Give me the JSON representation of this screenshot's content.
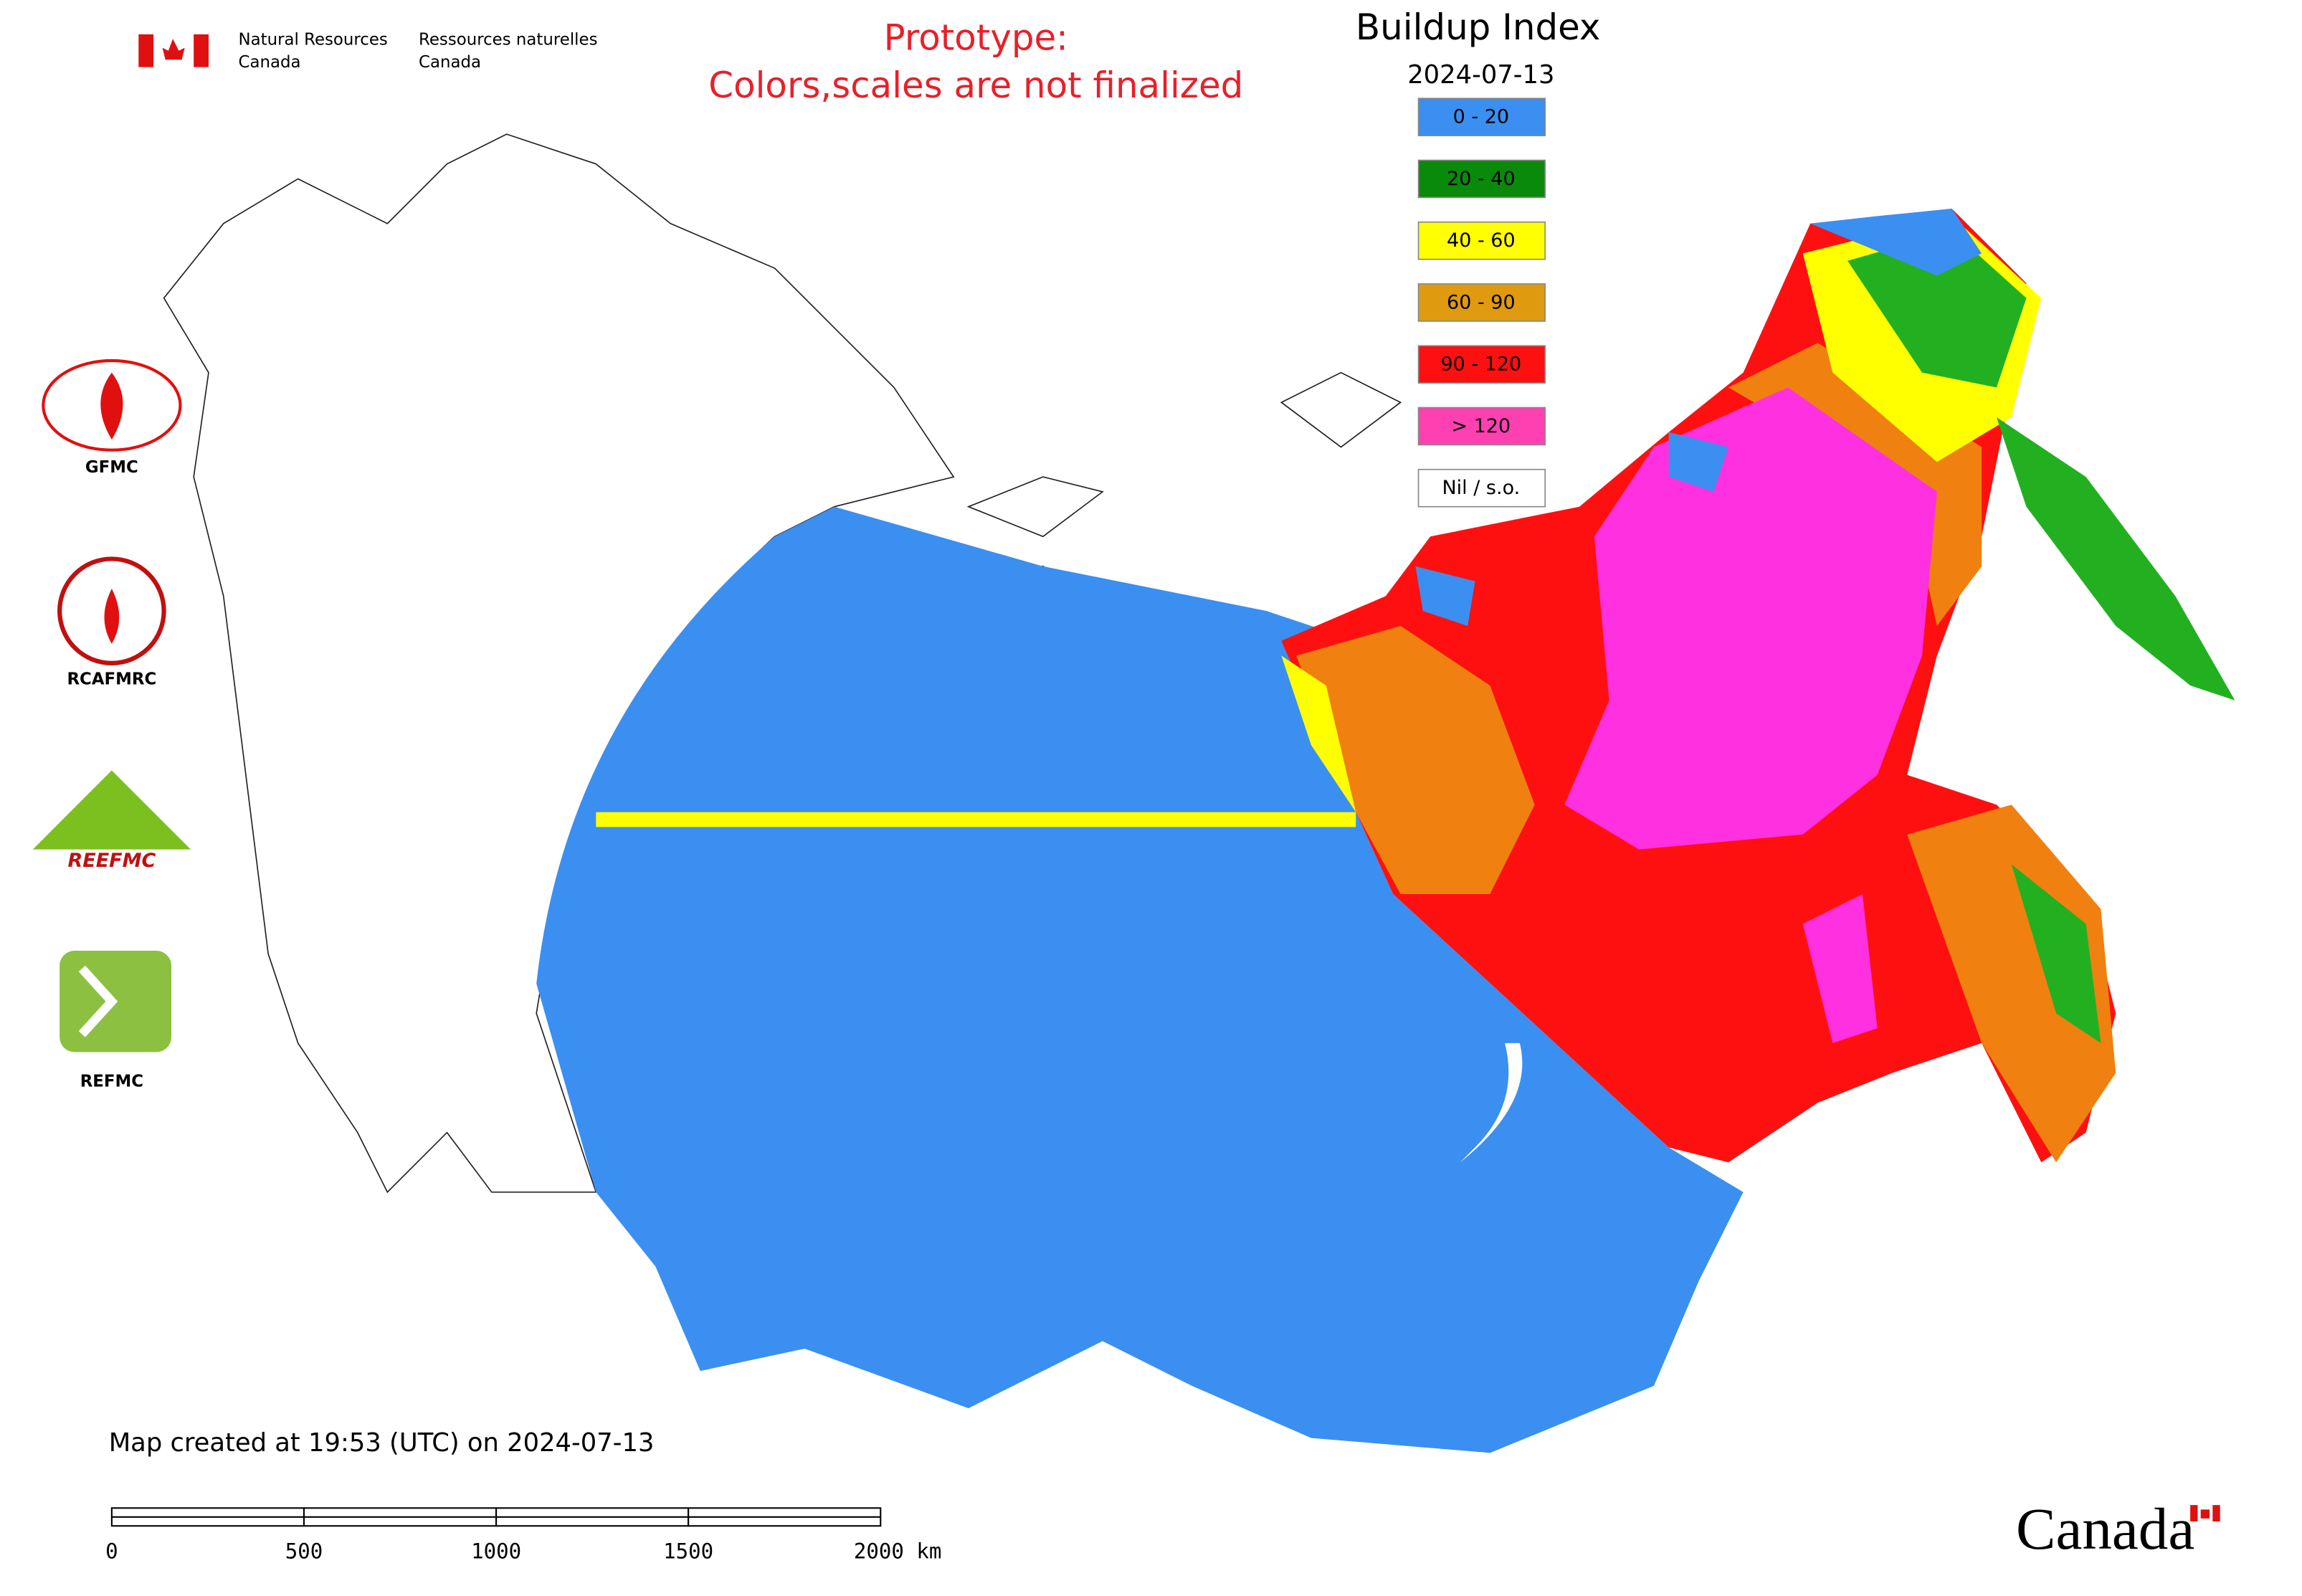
{
  "header": {
    "department_en": [
      "Natural Resources",
      "Canada"
    ],
    "department_fr": [
      "Ressources naturelles",
      "Canada"
    ],
    "notice": [
      "Prototype:",
      "Colors,scales are not finalized"
    ]
  },
  "legend": {
    "title": "Buildup Index",
    "date": "2024-07-13",
    "items": [
      {
        "label": "0 - 20",
        "color": "#3b8ff0"
      },
      {
        "label": "20 - 40",
        "color": "#0a8a0a"
      },
      {
        "label": "40 - 60",
        "color": "#ffff00"
      },
      {
        "label": "60 - 90",
        "color": "#e09a10"
      },
      {
        "label": "90 - 120",
        "color": "#ff1010"
      },
      {
        "label": "> 120",
        "color": "#ff40b0"
      },
      {
        "label": "Nil / s.o.",
        "color": "#ffffff"
      }
    ]
  },
  "logos": [
    "GFMC",
    "RCAFMRC",
    "REEFMC",
    "REFMC"
  ],
  "footer": {
    "created": "Map created at 19:53 (UTC) on 2024-07-13",
    "scale_labels": [
      "0",
      "500",
      "1000",
      "1500",
      "2000 km"
    ],
    "wordmark": "Canada"
  }
}
